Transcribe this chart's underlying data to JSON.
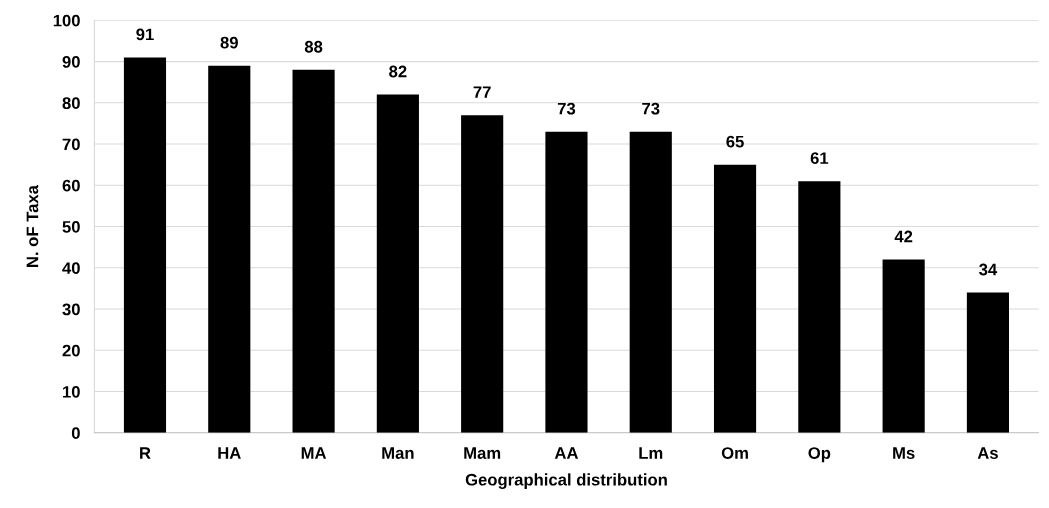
{
  "chart_data": {
    "type": "bar",
    "xlabel": "Geographical distribution",
    "ylabel": "N. oF Taxa",
    "categories": [
      "R",
      "HA",
      "MA",
      "Man",
      "Mam",
      "AA",
      "Lm",
      "Om",
      "Op",
      "Ms",
      "As"
    ],
    "values": [
      91,
      89,
      88,
      82,
      77,
      73,
      73,
      65,
      61,
      42,
      34
    ],
    "color": "#000000",
    "ylim": [
      0,
      100
    ],
    "yticks": [
      0,
      10,
      20,
      30,
      40,
      50,
      60,
      70,
      80,
      90,
      100
    ],
    "grid": "y",
    "data_labels": true
  }
}
